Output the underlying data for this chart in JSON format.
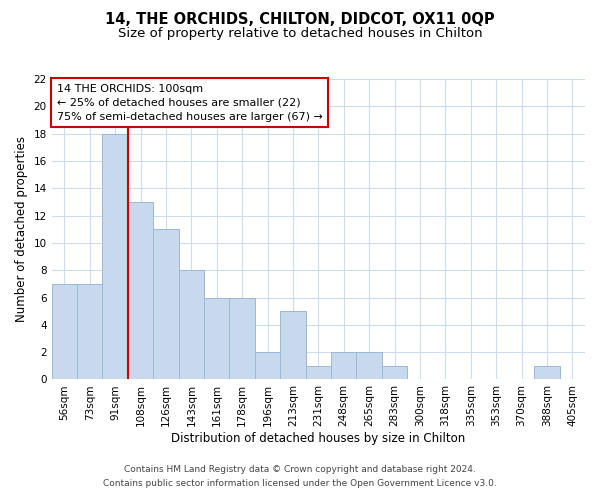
{
  "title": "14, THE ORCHIDS, CHILTON, DIDCOT, OX11 0QP",
  "subtitle": "Size of property relative to detached houses in Chilton",
  "xlabel": "Distribution of detached houses by size in Chilton",
  "ylabel": "Number of detached properties",
  "bin_labels": [
    "56sqm",
    "73sqm",
    "91sqm",
    "108sqm",
    "126sqm",
    "143sqm",
    "161sqm",
    "178sqm",
    "196sqm",
    "213sqm",
    "231sqm",
    "248sqm",
    "265sqm",
    "283sqm",
    "300sqm",
    "318sqm",
    "335sqm",
    "353sqm",
    "370sqm",
    "388sqm",
    "405sqm"
  ],
  "counts": [
    7,
    7,
    18,
    13,
    11,
    8,
    6,
    6,
    2,
    5,
    1,
    2,
    2,
    1,
    0,
    0,
    0,
    0,
    0,
    1,
    0
  ],
  "bar_color": "#c8d8ed",
  "bar_edge_color": "#9ab8d8",
  "marker_color": "#cc0000",
  "marker_line_bin_index": 2,
  "annotation_line1": "14 THE ORCHIDS: 100sqm",
  "annotation_line2": "← 25% of detached houses are smaller (22)",
  "annotation_line3": "75% of semi-detached houses are larger (67) →",
  "annotation_box_color": "#ffffff",
  "annotation_box_edge": "#cc0000",
  "ylim": [
    0,
    22
  ],
  "yticks": [
    0,
    2,
    4,
    6,
    8,
    10,
    12,
    14,
    16,
    18,
    20,
    22
  ],
  "footer_line1": "Contains HM Land Registry data © Crown copyright and database right 2024.",
  "footer_line2": "Contains public sector information licensed under the Open Government Licence v3.0.",
  "background_color": "#ffffff",
  "grid_color": "#ccdded",
  "title_fontsize": 10.5,
  "subtitle_fontsize": 9.5,
  "axis_label_fontsize": 8.5,
  "tick_fontsize": 7.5,
  "annotation_fontsize": 8,
  "footer_fontsize": 6.5
}
